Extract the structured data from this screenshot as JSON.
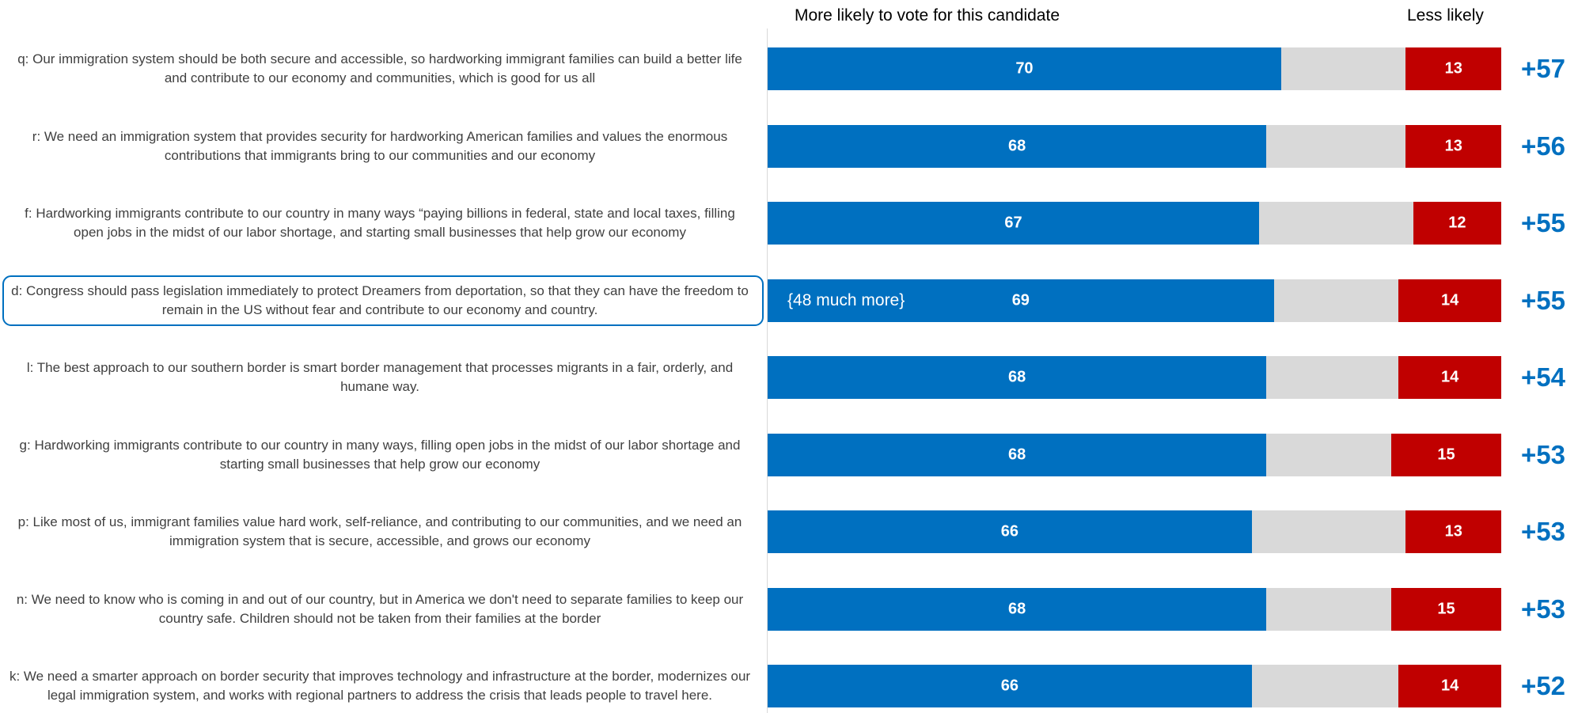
{
  "chart_data": {
    "type": "bar",
    "orientation": "horizontal",
    "categories": [
      "q: Our immigration system should be both secure and accessible, so hardworking immigrant families can build a better life and contribute to our economy and communities, which is good for us all",
      "r: We need an immigration system that provides security for hardworking American families and values the enormous contributions that immigrants bring to our communities and our economy",
      "f: Hardworking immigrants contribute to our country in many ways “paying billions in federal, state and local taxes, filling open jobs in the midst of our labor shortage, and starting small businesses that help grow our economy",
      "d: Congress should pass legislation immediately to protect Dreamers from deportation, so that they can have the freedom to remain in the US without fear and contribute to our economy and country.",
      "l: The best approach to our southern border is smart border management that processes migrants in a fair, orderly, and humane way.",
      "g: Hardworking immigrants contribute to our country in many ways, filling open jobs in the midst of our labor shortage and starting small businesses that help grow our economy",
      "p: Like most of us, immigrant families value hard work, self-reliance, and contributing to our communities, and we need an immigration system that is secure, accessible, and grows our economy",
      "n: We need to know who is coming in and out of our country, but in America we don't need to separate families to keep our country safe. Children should not be taken from their families at the border",
      "k: We need a smarter approach on border security that improves technology and infrastructure at the border, modernizes our legal immigration system, and works with regional partners to address the crisis that leads people to travel here."
    ],
    "series": [
      {
        "name": "More likely to vote for this candidate",
        "color": "#0070C0",
        "values": [
          70,
          68,
          67,
          69,
          68,
          68,
          66,
          68,
          66
        ]
      },
      {
        "name": "Less likely",
        "color": "#C00000",
        "values": [
          13,
          13,
          12,
          14,
          14,
          15,
          13,
          15,
          14
        ]
      }
    ],
    "net": {
      "color": "#0070C0",
      "values": [
        57,
        56,
        55,
        55,
        54,
        53,
        53,
        53,
        52
      ],
      "value_labels": [
        "+57",
        "+56",
        "+55",
        "+55",
        "+54",
        "+53",
        "+53",
        "+53",
        "+52"
      ]
    },
    "track_color": "#D9D9D9",
    "xlim": [
      0,
      100
    ],
    "annotation": {
      "text": "{48 much more}",
      "category": 3
    }
  }
}
